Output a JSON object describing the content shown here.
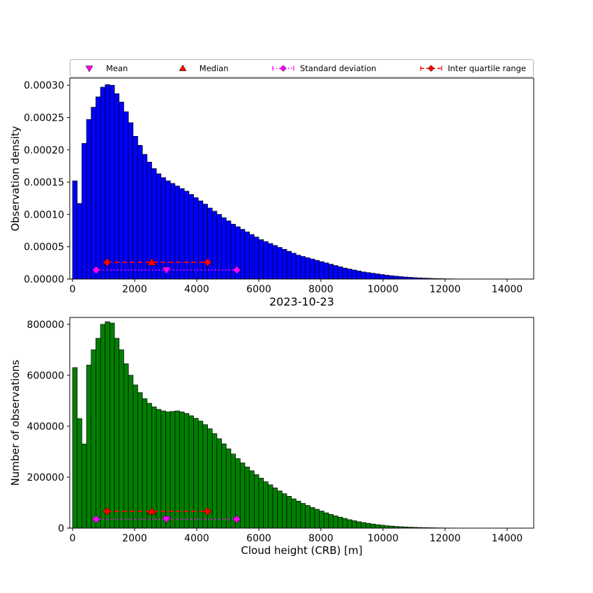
{
  "figure": {
    "title": "2023-10-23",
    "background": "#ffffff"
  },
  "legend": {
    "items": [
      {
        "label": "Mean",
        "marker": "triangle-down",
        "color": "#ff00ff",
        "line": "none"
      },
      {
        "label": "Median",
        "marker": "triangle-up",
        "color": "#ff0000",
        "line": "none"
      },
      {
        "label": "Standard deviation",
        "marker": "diamond",
        "color": "#ff00ff",
        "line": "dotted"
      },
      {
        "label": "Inter quartile range",
        "marker": "diamond",
        "color": "#ff0000",
        "line": "dashed"
      }
    ]
  },
  "chart_data": [
    {
      "type": "bar",
      "name": "observation-density-histogram",
      "ylabel": "Observation density",
      "xlabel": "",
      "bar_color": "#0000ff",
      "edge_color": "#000000",
      "bin_start": 0,
      "bin_width": 150,
      "values": [
        0.000152,
        0.000117,
        0.00021,
        0.000247,
        0.000266,
        0.000282,
        0.000297,
        0.000301,
        0.0003,
        0.000287,
        0.000274,
        0.000259,
        0.000242,
        0.000221,
        0.000207,
        0.000193,
        0.000181,
        0.000171,
        0.000163,
        0.000157,
        0.000152,
        0.000148,
        0.000144,
        0.00014,
        0.000136,
        0.000131,
        0.000126,
        0.000121,
        0.000116,
        0.00011,
        0.000105,
        0.0001,
        9.5e-05,
        9e-05,
        8.5e-05,
        8.1e-05,
        7.7e-05,
        7.3e-05,
        6.9e-05,
        6.5e-05,
        6.1e-05,
        5.8e-05,
        5.5e-05,
        5.2e-05,
        4.9e-05,
        4.6e-05,
        4.3e-05,
        4e-05,
        3.7e-05,
        3.5e-05,
        3.3e-05,
        3.1e-05,
        2.9e-05,
        2.7e-05,
        2.5e-05,
        2.3e-05,
        2.1e-05,
        1.9e-05,
        1.7e-05,
        1.55e-05,
        1.4e-05,
        1.25e-05,
        1.1e-05,
        1e-05,
        9e-06,
        8e-06,
        7e-06,
        6e-06,
        5.2e-06,
        4.5e-06,
        3.8e-06,
        3.2e-06,
        2.7e-06,
        2.2e-06,
        1.8e-06,
        1.5e-06,
        1.2e-06,
        9e-07,
        7e-07,
        5.5e-07,
        4e-07,
        3e-07,
        2e-07,
        1.2e-07,
        6e-08
      ],
      "xlim": [
        -90,
        14855
      ],
      "ylim": [
        0,
        0.000311
      ],
      "xticks": [
        0,
        2000,
        4000,
        6000,
        8000,
        10000,
        12000,
        14000
      ],
      "xtick_labels": [
        "0",
        "2000",
        "4000",
        "6000",
        "8000",
        "10000",
        "12000",
        "14000"
      ],
      "yticks": [
        0,
        5e-05,
        0.0001,
        0.00015,
        0.0002,
        0.00025,
        0.0003
      ],
      "ytick_labels": [
        "0.00000",
        "0.00005",
        "0.00010",
        "0.00015",
        "0.00020",
        "0.00025",
        "0.00030"
      ],
      "markers": {
        "mean": {
          "x": 3025,
          "y": 1.4e-05
        },
        "median": {
          "x": 2550,
          "y": 2.6e-05
        },
        "std": {
          "x1": 760,
          "x2": 5290,
          "y": 1.4e-05
        },
        "iqr": {
          "x1": 1110,
          "x2": 4350,
          "y": 2.6e-05
        }
      }
    },
    {
      "type": "bar",
      "name": "number-of-observations-histogram",
      "ylabel": "Number of observations",
      "xlabel": "Cloud height (CRB) [m]",
      "bar_color": "#008000",
      "edge_color": "#000000",
      "bin_start": 0,
      "bin_width": 150,
      "values": [
        630000,
        430000,
        330000,
        640000,
        700000,
        745000,
        800000,
        810000,
        805000,
        745000,
        700000,
        645000,
        600000,
        562000,
        532000,
        508000,
        490000,
        476000,
        466000,
        460000,
        456000,
        458000,
        460000,
        456000,
        450000,
        441000,
        431000,
        420000,
        406000,
        390000,
        371000,
        351000,
        331000,
        311000,
        291000,
        273000,
        256000,
        240000,
        225000,
        210000,
        196000,
        182000,
        170000,
        158000,
        146000,
        135000,
        125000,
        115000,
        106000,
        97000,
        89000,
        81000,
        74000,
        67000,
        60000,
        54000,
        48000,
        43000,
        38000,
        33000,
        29000,
        25000,
        22000,
        19000,
        16000,
        13500,
        11500,
        9500,
        8000,
        6800,
        5600,
        4600,
        3800,
        3100,
        2500,
        2000,
        1600,
        1300,
        1000,
        800,
        600,
        450,
        300,
        200,
        100
      ],
      "xlim": [
        -90,
        14855
      ],
      "ylim": [
        0,
        827000
      ],
      "xticks": [
        0,
        2000,
        4000,
        6000,
        8000,
        10000,
        12000,
        14000
      ],
      "xtick_labels": [
        "0",
        "2000",
        "4000",
        "6000",
        "8000",
        "10000",
        "12000",
        "14000"
      ],
      "yticks": [
        0,
        200000,
        400000,
        600000,
        800000
      ],
      "ytick_labels": [
        "0",
        "200000",
        "400000",
        "600000",
        "800000"
      ],
      "markers": {
        "mean": {
          "x": 3025,
          "y": 35000
        },
        "median": {
          "x": 2550,
          "y": 66000
        },
        "std": {
          "x1": 760,
          "x2": 5290,
          "y": 35000
        },
        "iqr": {
          "x1": 1110,
          "x2": 4350,
          "y": 66000
        }
      }
    }
  ]
}
